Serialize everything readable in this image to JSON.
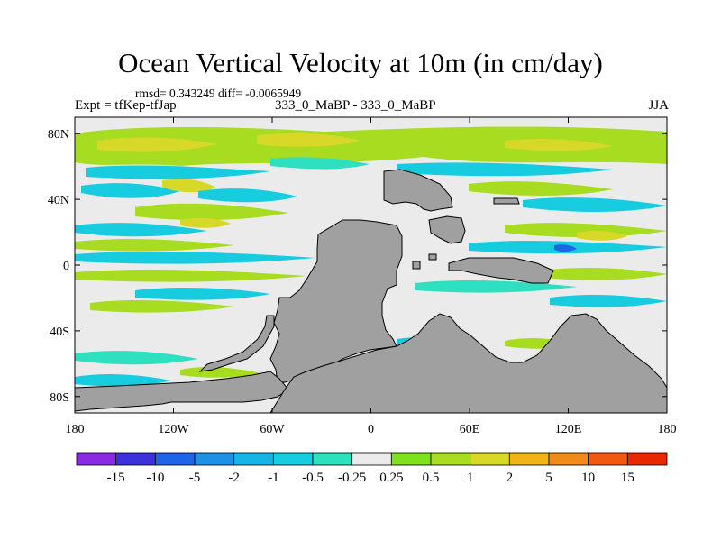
{
  "chart_data": {
    "type": "heatmap",
    "title": "Ocean Vertical Velocity at 10m (in cm/day)",
    "stats_text": "rmsd= 0.343249  diff= -0.0065949",
    "left_label": "Expt = tfKep-tfJap",
    "center_label": "333_0_MaBP - 333_0_MaBP",
    "right_label": "JJA",
    "x_ticks": [
      "180",
      "120W",
      "60W",
      "0",
      "60E",
      "120E",
      "180"
    ],
    "y_ticks": [
      "80N",
      "40N",
      "0",
      "40S",
      "80S"
    ],
    "xlim": [
      -180,
      180
    ],
    "ylim": [
      -90,
      90
    ],
    "colorbar": {
      "labels": [
        "-15",
        "-10",
        "-5",
        "-2",
        "-1",
        "-0.5",
        "-0.25",
        "0.25",
        "0.5",
        "1",
        "2",
        "5",
        "10",
        "15"
      ],
      "colors": [
        "#8a2be2",
        "#3b32d9",
        "#1f64e6",
        "#1e90e6",
        "#18b4e6",
        "#18cce0",
        "#2ee0c0",
        "#ebebeb",
        "#7fe01e",
        "#a8dc20",
        "#d8d828",
        "#f0b418",
        "#f08a18",
        "#f05a10",
        "#e82800"
      ]
    },
    "land_color": "#a0a0a0"
  }
}
